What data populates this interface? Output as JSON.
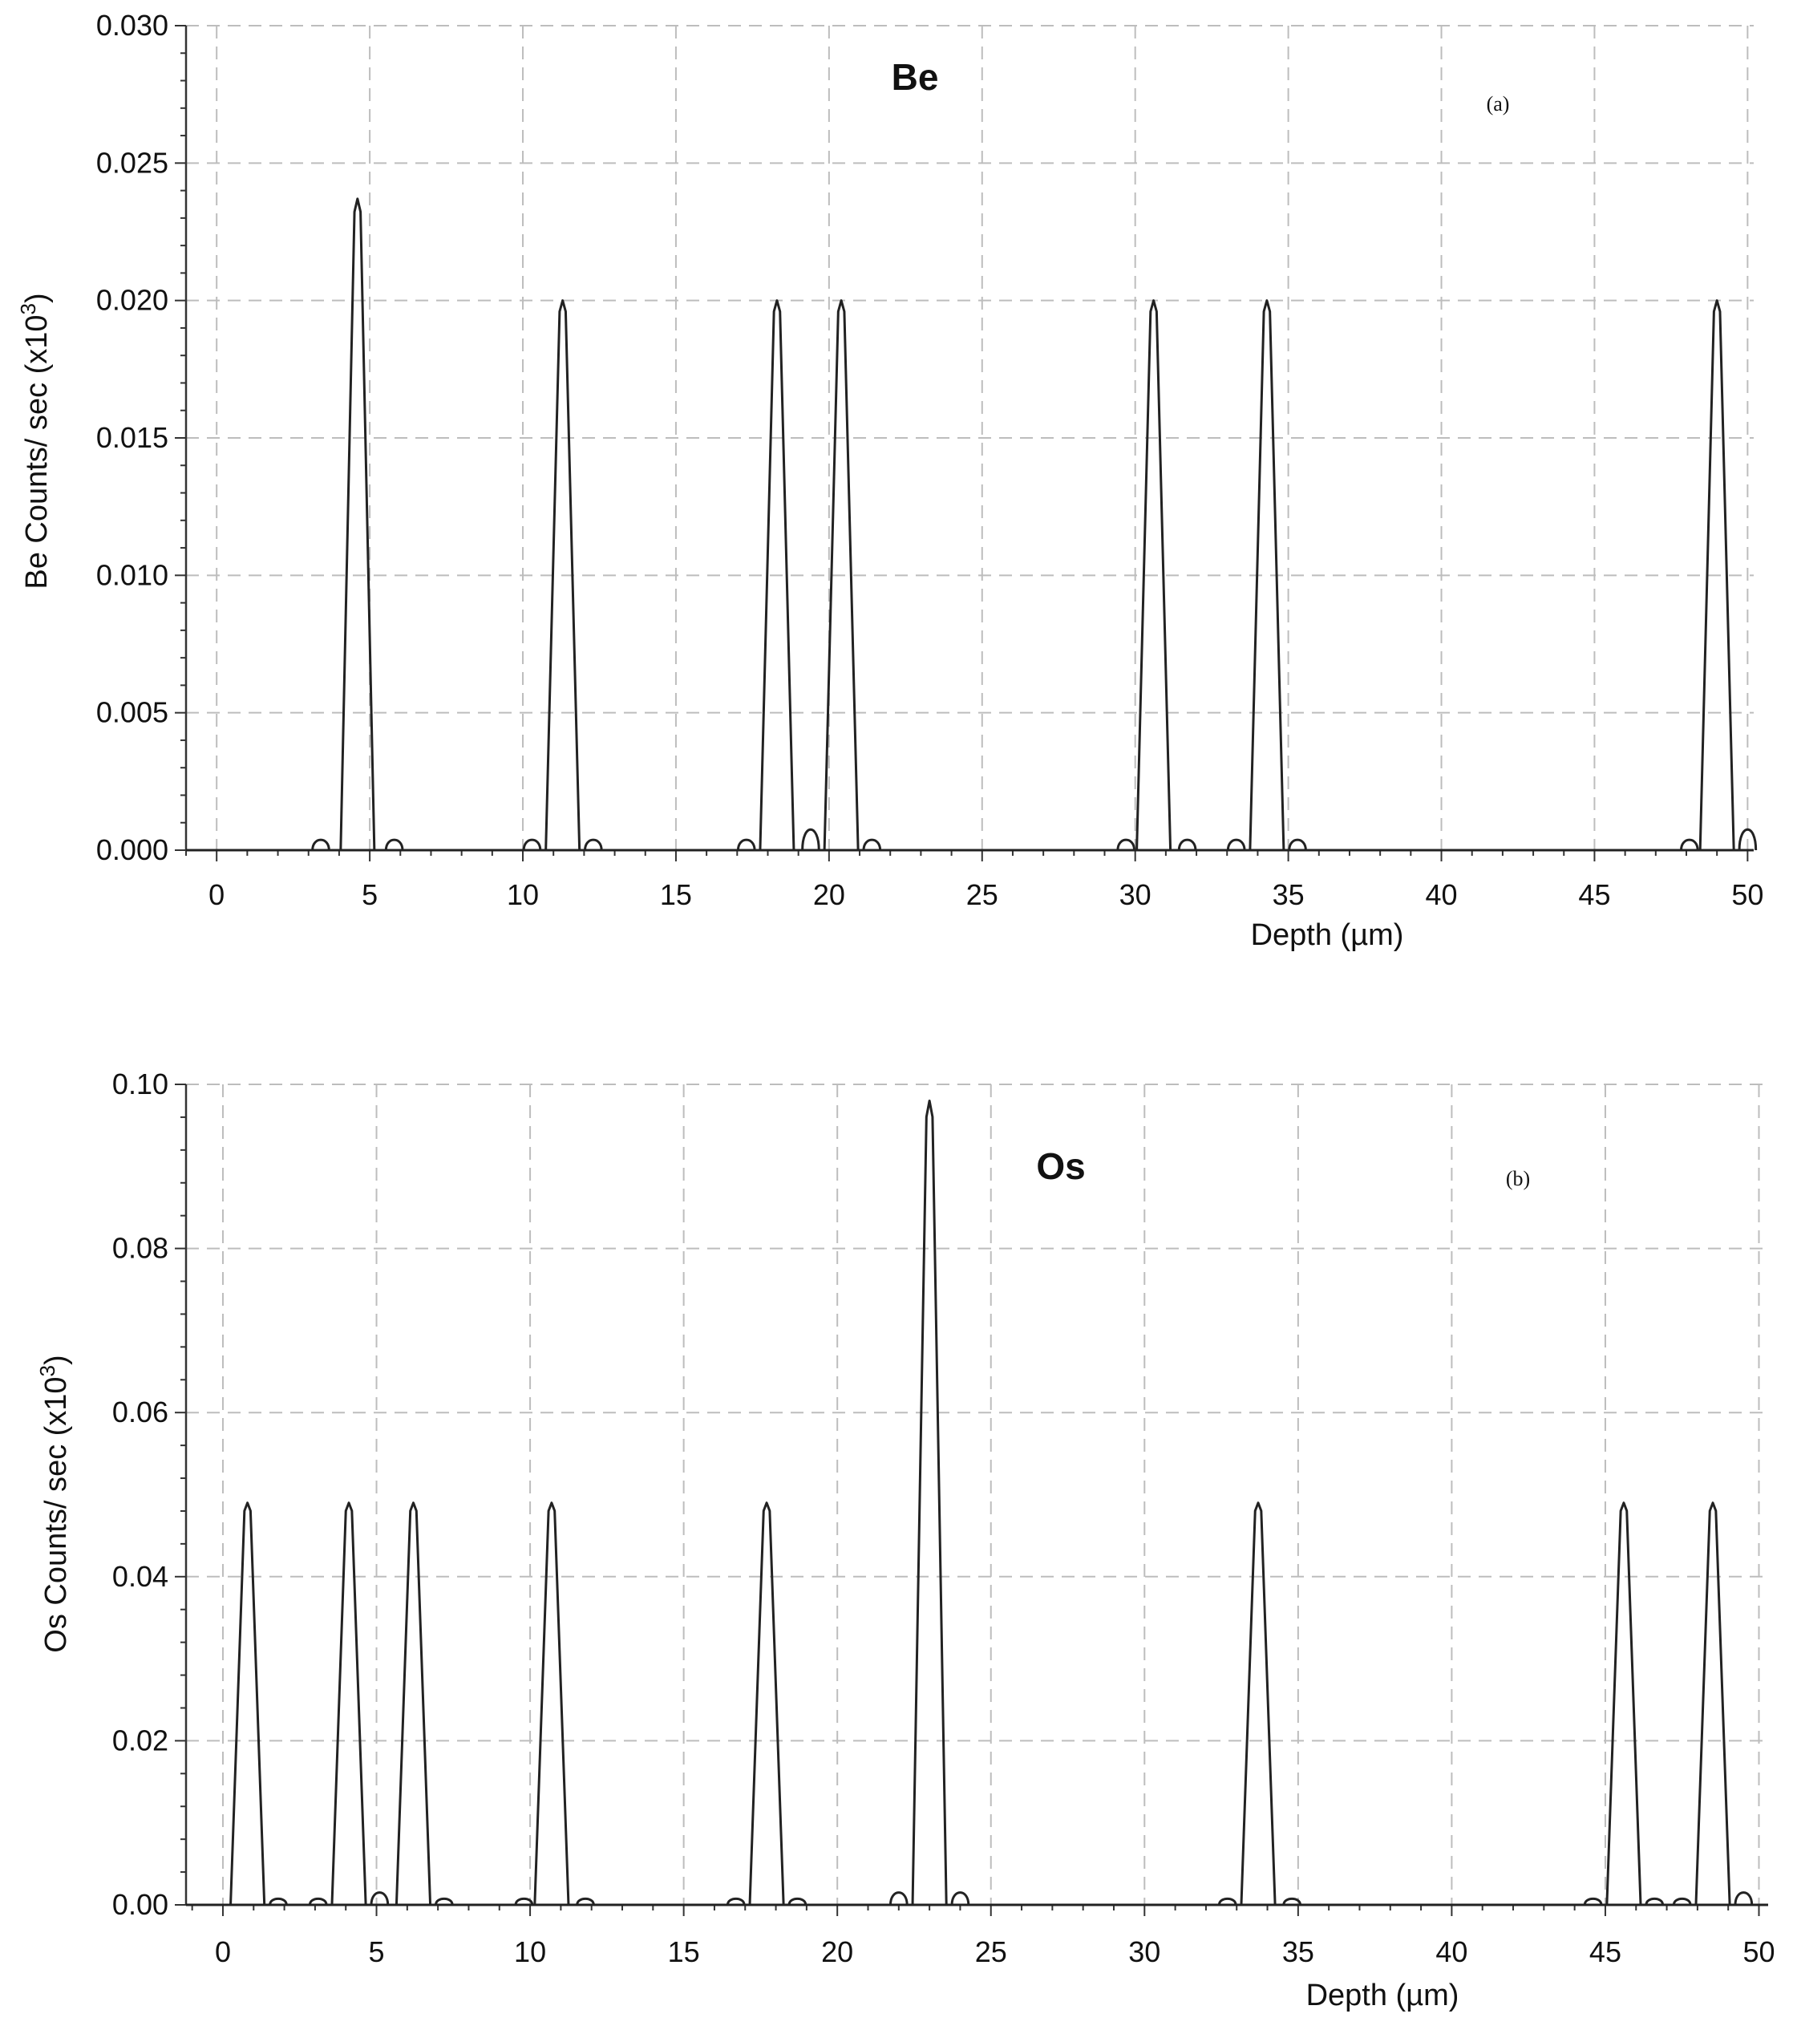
{
  "chart_data": [
    {
      "type": "line",
      "id": "be",
      "element_label": "Be",
      "panel_label": "(a)",
      "xlabel": "Depth (µm)",
      "ylabel_main": "Be Counts/ sec (x10",
      "ylabel_sup": "3",
      "ylabel_close": ")",
      "xlim": [
        -1,
        50.2
      ],
      "ylim": [
        0,
        0.03
      ],
      "x_ticks": [
        0,
        5,
        10,
        15,
        20,
        25,
        30,
        35,
        40,
        45,
        50
      ],
      "x_tick_labels": [
        "0",
        "5",
        "10",
        "15",
        "20",
        "25",
        "30",
        "35",
        "40",
        "45",
        "50"
      ],
      "y_ticks": [
        0,
        0.005,
        0.01,
        0.015,
        0.02,
        0.025,
        0.03
      ],
      "y_tick_labels": [
        "0.000",
        "0.005",
        "0.010",
        "0.015",
        "0.020",
        "0.025",
        "0.030"
      ],
      "grid": true,
      "series": [
        {
          "peaks": [
            {
              "x": 4.6,
              "y": 0.0237
            },
            {
              "x": 11.3,
              "y": 0.02
            },
            {
              "x": 18.3,
              "y": 0.02
            },
            {
              "x": 20.4,
              "y": 0.02
            },
            {
              "x": 30.6,
              "y": 0.02
            },
            {
              "x": 34.3,
              "y": 0.02
            },
            {
              "x": 49.0,
              "y": 0.02
            }
          ],
          "side_lobes": [
            {
              "x": 3.4,
              "y": 0.0005
            },
            {
              "x": 5.8,
              "y": 0.0005
            },
            {
              "x": 10.3,
              "y": 0.0005
            },
            {
              "x": 12.3,
              "y": 0.0005
            },
            {
              "x": 17.3,
              "y": 0.0005
            },
            {
              "x": 19.4,
              "y": 0.001
            },
            {
              "x": 21.4,
              "y": 0.0005
            },
            {
              "x": 29.7,
              "y": 0.0005
            },
            {
              "x": 31.7,
              "y": 0.0005
            },
            {
              "x": 33.3,
              "y": 0.0005
            },
            {
              "x": 35.3,
              "y": 0.0005
            },
            {
              "x": 48.1,
              "y": 0.0005
            },
            {
              "x": 50.0,
              "y": 0.001
            }
          ]
        }
      ]
    },
    {
      "type": "line",
      "id": "os",
      "element_label": "Os",
      "panel_label": "(b)",
      "xlabel": "Depth (µm)",
      "ylabel_main": "Os Counts/ sec (x10",
      "ylabel_sup": "3",
      "ylabel_close": ")",
      "xlim": [
        -1.2,
        50.3
      ],
      "ylim": [
        0,
        0.1
      ],
      "x_ticks": [
        0,
        5,
        10,
        15,
        20,
        25,
        30,
        35,
        40,
        45,
        50
      ],
      "x_tick_labels": [
        "0",
        "5",
        "10",
        "15",
        "20",
        "25",
        "30",
        "35",
        "40",
        "45",
        "50"
      ],
      "y_ticks": [
        0,
        0.02,
        0.04,
        0.06,
        0.08,
        0.1
      ],
      "y_tick_labels": [
        "0.00",
        "0.02",
        "0.04",
        "0.06",
        "0.08",
        "0.10"
      ],
      "grid": true,
      "series": [
        {
          "peaks": [
            {
              "x": 0.8,
              "y": 0.049
            },
            {
              "x": 4.1,
              "y": 0.049
            },
            {
              "x": 6.2,
              "y": 0.049
            },
            {
              "x": 10.7,
              "y": 0.049
            },
            {
              "x": 17.7,
              "y": 0.049
            },
            {
              "x": 23.0,
              "y": 0.098
            },
            {
              "x": 33.7,
              "y": 0.049
            },
            {
              "x": 45.6,
              "y": 0.049
            },
            {
              "x": 48.5,
              "y": 0.049
            }
          ],
          "side_lobes": [
            {
              "x": 1.8,
              "y": 0.001
            },
            {
              "x": 3.1,
              "y": 0.001
            },
            {
              "x": 5.1,
              "y": 0.002
            },
            {
              "x": 7.2,
              "y": 0.001
            },
            {
              "x": 9.8,
              "y": 0.001
            },
            {
              "x": 11.8,
              "y": 0.001
            },
            {
              "x": 16.7,
              "y": 0.001
            },
            {
              "x": 18.7,
              "y": 0.001
            },
            {
              "x": 22.0,
              "y": 0.002
            },
            {
              "x": 24.0,
              "y": 0.002
            },
            {
              "x": 32.7,
              "y": 0.001
            },
            {
              "x": 34.8,
              "y": 0.001
            },
            {
              "x": 44.6,
              "y": 0.001
            },
            {
              "x": 46.6,
              "y": 0.001
            },
            {
              "x": 47.5,
              "y": 0.001
            },
            {
              "x": 49.5,
              "y": 0.002
            }
          ]
        }
      ]
    }
  ]
}
